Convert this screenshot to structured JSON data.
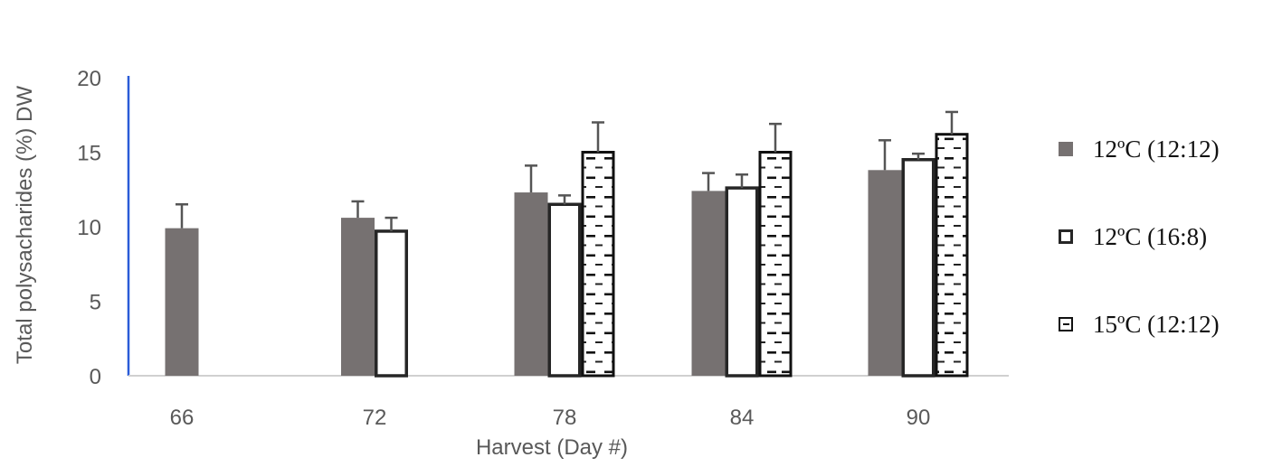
{
  "chart_data": {
    "type": "bar",
    "title": "",
    "xlabel": "Harvest  (Day #)",
    "ylabel": "Total polysacharides (%) DW",
    "ylim": [
      0,
      20
    ],
    "yticks": [
      0,
      5,
      10,
      15,
      20
    ],
    "grid": false,
    "legend_position": "right",
    "categories": [
      "66",
      "72",
      "78",
      "84",
      "90"
    ],
    "series": [
      {
        "name": "12ºC (12:12)",
        "style": "solid-gray",
        "color": "#767171",
        "values": [
          9.9,
          10.6,
          12.3,
          12.4,
          13.8
        ],
        "errors": [
          1.6,
          1.1,
          1.8,
          1.2,
          2.0
        ]
      },
      {
        "name": "12ºC (16:8)",
        "style": "open",
        "color": "#262626",
        "values": [
          null,
          9.7,
          11.5,
          12.6,
          14.5
        ],
        "errors": [
          null,
          0.9,
          0.6,
          0.9,
          0.4
        ]
      },
      {
        "name": "15ºC (12:12)",
        "style": "dashed-pattern",
        "color": "#111111",
        "values": [
          null,
          null,
          15.0,
          15.0,
          16.2
        ],
        "errors": [
          null,
          null,
          2.0,
          1.9,
          1.5
        ]
      }
    ]
  },
  "labels": {
    "ylabel": "Total polysacharides (%) DW",
    "xlabel": "Harvest  (Day #)"
  },
  "legend": [
    {
      "label": "12ºC (12:12)"
    },
    {
      "label": "12ºC (16:8)"
    },
    {
      "label": "15ºC (12:12)"
    }
  ]
}
